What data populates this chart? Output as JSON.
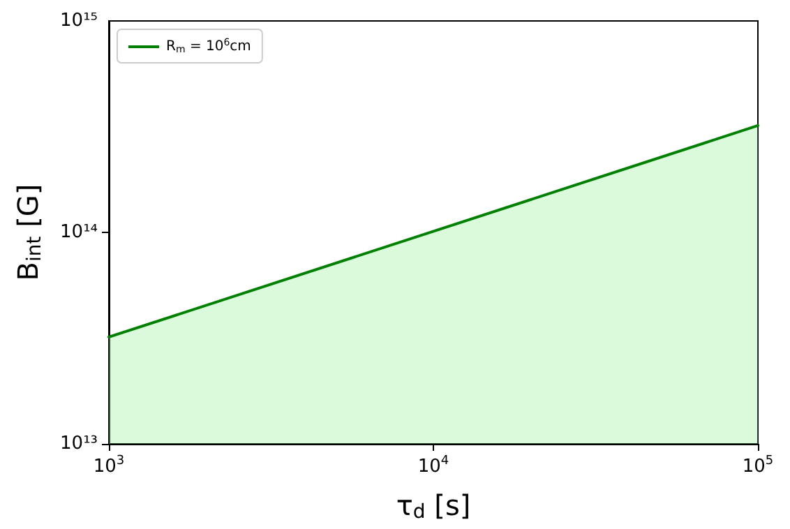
{
  "chart_data": {
    "type": "area",
    "xlabel": "τ$_{d}$ [s]",
    "ylabel": "B$_{int}$ [G]",
    "log": "xy",
    "x": [
      1000,
      100000
    ],
    "series": [
      {
        "name": "R$_{m}$ = 10$^{6}$cm",
        "color": "#008000",
        "values": [
          32000000000000.0,
          320000000000000.0
        ]
      }
    ],
    "xlim": [
      1000,
      100000
    ],
    "xticks": [
      {
        "value": 1000,
        "label": "10$^{3}$"
      },
      {
        "value": 10000,
        "label": "10$^{4}$"
      },
      {
        "value": 100000,
        "label": "10$^{5}$"
      }
    ],
    "ylim": [
      10000000000000.0,
      1000000000000000.0
    ],
    "yticks": [
      {
        "value": 10000000000000.0,
        "label": "10¹³"
      },
      {
        "value": 100000000000000.0,
        "label": "10¹⁴"
      },
      {
        "value": 1000000000000000.0,
        "label": "10¹⁵"
      }
    ],
    "grid": false,
    "legend": "top left"
  }
}
